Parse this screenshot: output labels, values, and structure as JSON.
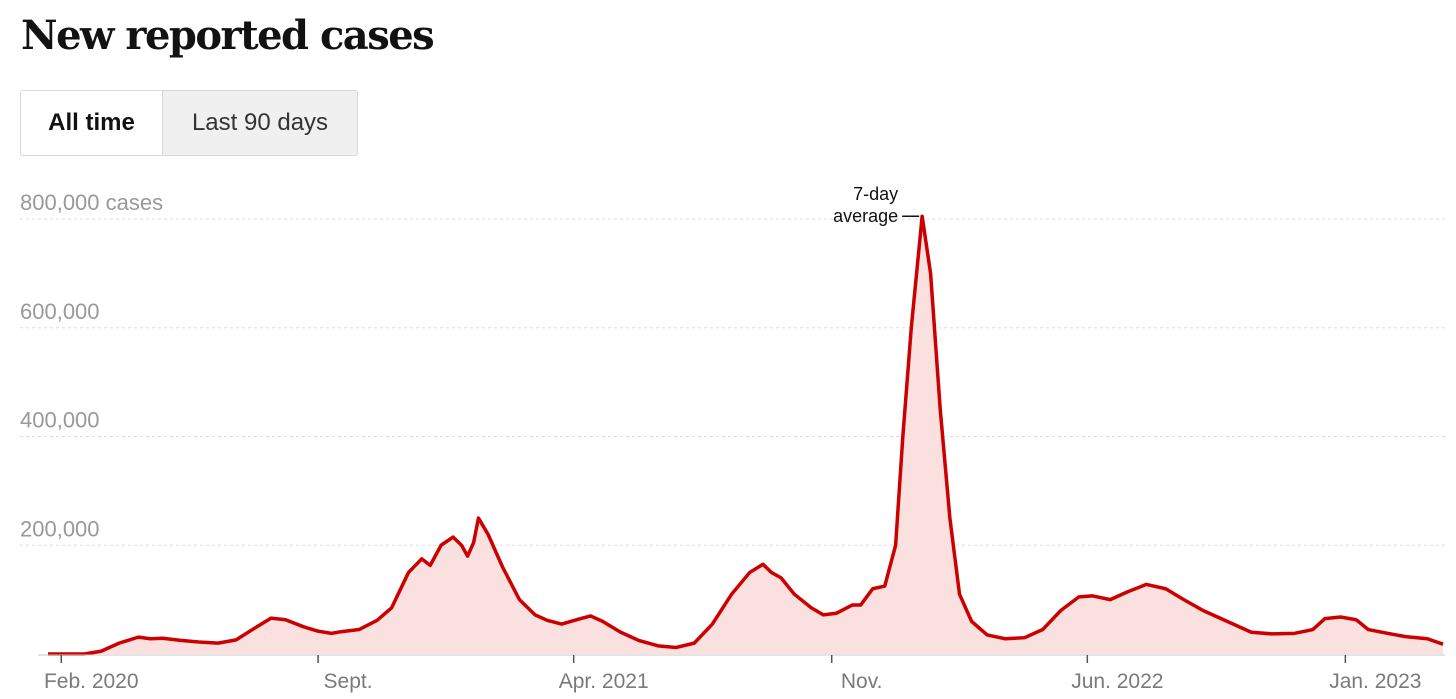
{
  "header": {
    "title": "New reported cases"
  },
  "toggle": {
    "options": [
      {
        "label": "All time",
        "selected": true
      },
      {
        "label": "Last 90 days",
        "selected": false
      }
    ]
  },
  "colors": {
    "line": "#cc0000",
    "area": "#fbe0e0",
    "grid": "#dddddd",
    "tick_label": "#999999"
  },
  "chart_data": {
    "type": "area",
    "title": "New reported cases",
    "ylabel": "",
    "xlabel": "",
    "y_unit": "cases",
    "ylim": [
      0,
      800000
    ],
    "grid": true,
    "y_ticks": [
      {
        "value": 800000,
        "label": "800,000 cases"
      },
      {
        "value": 600000,
        "label": "600,000"
      },
      {
        "value": 400000,
        "label": "400,000"
      },
      {
        "value": 200000,
        "label": "200,000"
      }
    ],
    "xlim": [
      "2020-01-21",
      "2023-03-23"
    ],
    "x_ticks": [
      {
        "date": "2020-02-01",
        "label": "Feb. 2020"
      },
      {
        "date": "2020-09-01",
        "label": "Sept."
      },
      {
        "date": "2021-04-01",
        "label": "Apr. 2021"
      },
      {
        "date": "2021-11-01",
        "label": "Nov."
      },
      {
        "date": "2022-06-01",
        "label": "Jun. 2022"
      },
      {
        "date": "2023-01-01",
        "label": "Jan. 2023"
      }
    ],
    "annotation": {
      "lines": [
        "7-day",
        "average"
      ],
      "date": "2022-01-15",
      "value": 805000
    },
    "series": [
      {
        "name": "7-day average",
        "points": [
          [
            "2020-01-21",
            0
          ],
          [
            "2020-02-20",
            0
          ],
          [
            "2020-03-05",
            5000
          ],
          [
            "2020-03-20",
            20000
          ],
          [
            "2020-04-05",
            31000
          ],
          [
            "2020-04-15",
            28000
          ],
          [
            "2020-04-25",
            29000
          ],
          [
            "2020-05-10",
            25000
          ],
          [
            "2020-05-25",
            22000
          ],
          [
            "2020-06-10",
            20000
          ],
          [
            "2020-06-25",
            26000
          ],
          [
            "2020-07-10",
            47000
          ],
          [
            "2020-07-24",
            66000
          ],
          [
            "2020-08-05",
            63000
          ],
          [
            "2020-08-20",
            50000
          ],
          [
            "2020-09-01",
            42000
          ],
          [
            "2020-09-12",
            38000
          ],
          [
            "2020-09-20",
            41000
          ],
          [
            "2020-10-05",
            45000
          ],
          [
            "2020-10-20",
            62000
          ],
          [
            "2020-11-01",
            85000
          ],
          [
            "2020-11-15",
            150000
          ],
          [
            "2020-11-26",
            175000
          ],
          [
            "2020-12-03",
            163000
          ],
          [
            "2020-12-12",
            200000
          ],
          [
            "2020-12-22",
            215000
          ],
          [
            "2020-12-29",
            200000
          ],
          [
            "2021-01-03",
            180000
          ],
          [
            "2021-01-08",
            205000
          ],
          [
            "2021-01-12",
            250000
          ],
          [
            "2021-01-20",
            220000
          ],
          [
            "2021-02-01",
            160000
          ],
          [
            "2021-02-15",
            100000
          ],
          [
            "2021-02-28",
            72000
          ],
          [
            "2021-03-10",
            62000
          ],
          [
            "2021-03-22",
            55000
          ],
          [
            "2021-04-05",
            64000
          ],
          [
            "2021-04-15",
            70000
          ],
          [
            "2021-04-25",
            60000
          ],
          [
            "2021-05-10",
            40000
          ],
          [
            "2021-05-25",
            25000
          ],
          [
            "2021-06-10",
            15000
          ],
          [
            "2021-06-25",
            12000
          ],
          [
            "2021-07-10",
            20000
          ],
          [
            "2021-07-25",
            55000
          ],
          [
            "2021-08-10",
            110000
          ],
          [
            "2021-08-25",
            150000
          ],
          [
            "2021-09-05",
            165000
          ],
          [
            "2021-09-12",
            150000
          ],
          [
            "2021-09-20",
            140000
          ],
          [
            "2021-10-01",
            110000
          ],
          [
            "2021-10-15",
            85000
          ],
          [
            "2021-10-25",
            72000
          ],
          [
            "2021-11-05",
            75000
          ],
          [
            "2021-11-18",
            90000
          ],
          [
            "2021-11-25",
            90000
          ],
          [
            "2021-12-05",
            120000
          ],
          [
            "2021-12-15",
            125000
          ],
          [
            "2021-12-24",
            200000
          ],
          [
            "2021-12-30",
            400000
          ],
          [
            "2022-01-06",
            600000
          ],
          [
            "2022-01-15",
            805000
          ],
          [
            "2022-01-22",
            700000
          ],
          [
            "2022-01-30",
            450000
          ],
          [
            "2022-02-07",
            250000
          ],
          [
            "2022-02-15",
            110000
          ],
          [
            "2022-02-25",
            60000
          ],
          [
            "2022-03-10",
            35000
          ],
          [
            "2022-03-25",
            28000
          ],
          [
            "2022-04-10",
            30000
          ],
          [
            "2022-04-25",
            45000
          ],
          [
            "2022-05-10",
            80000
          ],
          [
            "2022-05-25",
            105000
          ],
          [
            "2022-06-05",
            107000
          ],
          [
            "2022-06-20",
            100000
          ],
          [
            "2022-07-05",
            115000
          ],
          [
            "2022-07-20",
            128000
          ],
          [
            "2022-08-05",
            120000
          ],
          [
            "2022-08-20",
            100000
          ],
          [
            "2022-09-05",
            80000
          ],
          [
            "2022-09-25",
            60000
          ],
          [
            "2022-10-15",
            40000
          ],
          [
            "2022-11-01",
            37000
          ],
          [
            "2022-11-20",
            38000
          ],
          [
            "2022-12-05",
            45000
          ],
          [
            "2022-12-15",
            65000
          ],
          [
            "2022-12-28",
            68000
          ],
          [
            "2023-01-10",
            63000
          ],
          [
            "2023-01-20",
            45000
          ],
          [
            "2023-02-05",
            38000
          ],
          [
            "2023-02-20",
            32000
          ],
          [
            "2023-03-10",
            28000
          ],
          [
            "2023-03-23",
            18000
          ]
        ]
      }
    ]
  }
}
